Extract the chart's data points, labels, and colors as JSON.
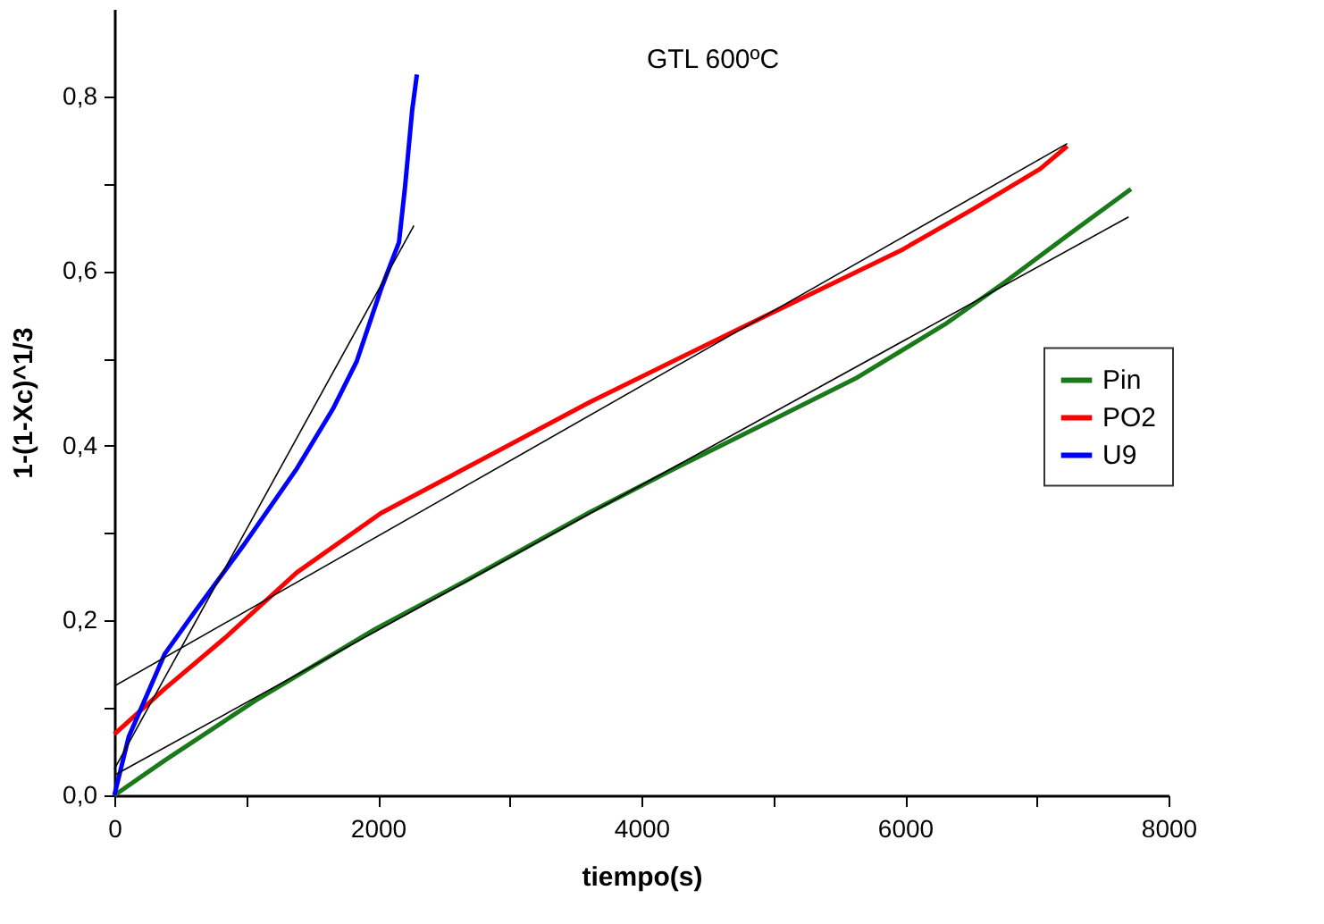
{
  "chart_data": {
    "type": "line",
    "title": "GTL 600ºC",
    "xlabel": "tiempo(s)",
    "ylabel": "1-(1-Xc)^1/3",
    "xlim": [
      0,
      8000
    ],
    "ylim": [
      0,
      0.9
    ],
    "xticks": [
      0,
      {
        "value": 1000,
        "label": null
      },
      2000,
      {
        "value": 3000,
        "label": null
      },
      4000,
      {
        "value": 5000,
        "label": null
      },
      6000,
      {
        "value": 7000,
        "label": null
      },
      8000
    ],
    "yticks": [
      {
        "value": 0,
        "label": "0,0"
      },
      {
        "value": 0.1,
        "label": null
      },
      {
        "value": 0.2,
        "label": "0,2"
      },
      {
        "value": 0.3,
        "label": null
      },
      {
        "value": 0.4,
        "label": "0,4"
      },
      {
        "value": 0.5,
        "label": null
      },
      {
        "value": 0.6,
        "label": "0,6"
      },
      {
        "value": 0.7,
        "label": null
      },
      {
        "value": 0.8,
        "label": "0,8"
      }
    ],
    "grid": false,
    "legend": "right",
    "marker": "none",
    "line_style": "solid",
    "series": [
      {
        "name": "Pin",
        "color": "#1a7a1a",
        "x": [
          0,
          383,
          1066,
          1977,
          2660,
          3608,
          4267,
          4946,
          5624,
          6303,
          6756,
          7208,
          7715
        ],
        "values": [
          0,
          0.04,
          0.108,
          0.19,
          0.245,
          0.324,
          0.375,
          0.426,
          0.477,
          0.539,
          0.587,
          0.638,
          0.694
        ]
      },
      {
        "name": "PO2",
        "color": "#ff0000",
        "x": [
          0,
          383,
          838,
          1385,
          2023,
          2660,
          3608,
          4946,
          5986,
          6529,
          7027,
          7231
        ],
        "values": [
          0.07,
          0.122,
          0.18,
          0.255,
          0.323,
          0.374,
          0.45,
          0.549,
          0.625,
          0.672,
          0.717,
          0.743
        ]
      },
      {
        "name": "U9",
        "color": "#0000ff",
        "x": [
          0,
          109,
          383,
          610,
          975,
          1385,
          1658,
          1840,
          2023,
          2160,
          2205,
          2260,
          2296
        ],
        "values": [
          0,
          0.067,
          0.162,
          0.21,
          0.285,
          0.374,
          0.442,
          0.497,
          0.579,
          0.633,
          0.695,
          0.784,
          0.825
        ]
      },
      {
        "type": "line",
        "color": "#000000",
        "x": [
          0,
          7697
        ],
        "values": [
          0.023,
          0.662
        ]
      },
      {
        "type": "line",
        "color": "#000000",
        "x": [
          0,
          7231
        ],
        "values": [
          0.125,
          0.746
        ]
      },
      {
        "type": "line",
        "color": "#000000",
        "x": [
          0,
          2273
        ],
        "values": [
          0.03,
          0.652
        ]
      }
    ]
  }
}
